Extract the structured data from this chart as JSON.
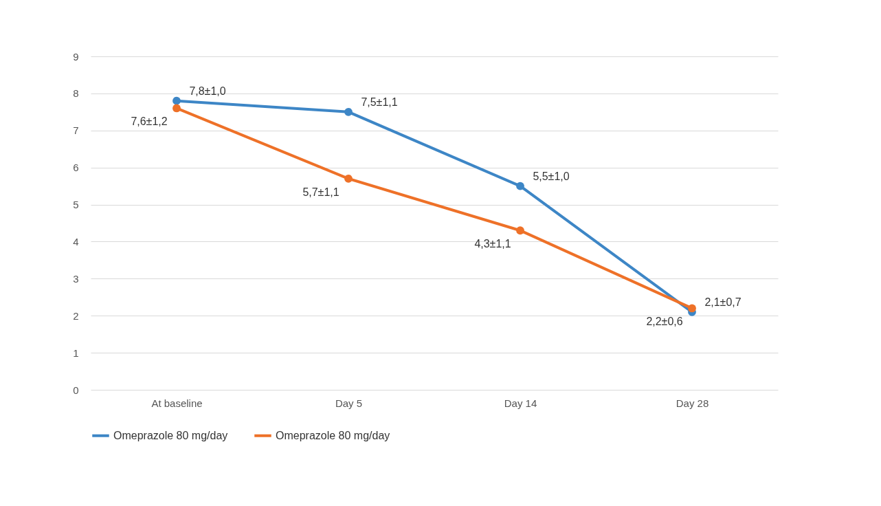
{
  "chart_data": {
    "type": "line",
    "categories": [
      "At baseline",
      "Day 5",
      "Day 14",
      "Day 28"
    ],
    "series": [
      {
        "name": "Omeprazole 80 mg/day",
        "color": "#3d86c6",
        "values": [
          7.8,
          7.5,
          5.5,
          2.1
        ],
        "value_labels": [
          "7,8±1,0",
          "7,5±1,1",
          "5,5±1,0",
          "2,1±0,7"
        ]
      },
      {
        "name": "Omeprazole 80 mg/day",
        "color": "#ee7128",
        "values": [
          7.6,
          5.7,
          4.3,
          2.2
        ],
        "value_labels": [
          "7,6±1,2",
          "5,7±1,1",
          "4,3±1,1",
          "2,2±0,6"
        ]
      }
    ],
    "ylim": [
      0,
      9
    ],
    "yticks": [
      0,
      1,
      2,
      3,
      4,
      5,
      6,
      7,
      8,
      9
    ],
    "grid": "y",
    "legend": "bottom",
    "marker": "circle",
    "line_style": "solid"
  }
}
